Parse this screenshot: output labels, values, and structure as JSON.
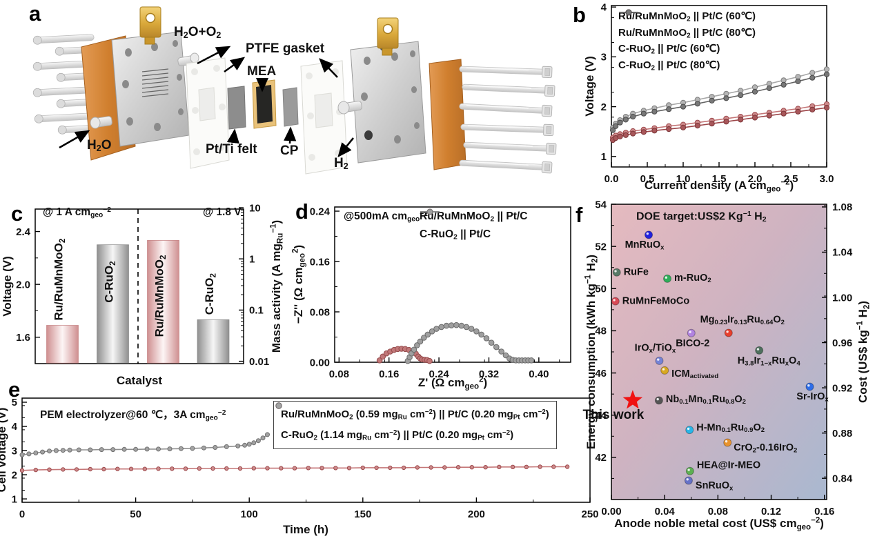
{
  "figure": {
    "letters": {
      "a": "a",
      "b": "b",
      "c": "c",
      "d": "d",
      "e": "e",
      "f": "f"
    }
  },
  "panel_a": {
    "labels": {
      "h2o_o2": "H<sub>2</sub>O+O<sub>2</sub>",
      "ptfe": "PTFE gasket",
      "mea": "MEA",
      "h2o": "H<sub>2</sub>O",
      "ptti": "Pt/Ti felt",
      "cp": "CP",
      "h2": "H<sub>2</sub>"
    }
  },
  "chart_data": [
    {
      "id": "b",
      "type": "line",
      "xlabel": "Current density (A cm<sub>geo</sub><sup>−2</sup>)",
      "ylabel": "Voltage (V)",
      "xlim": [
        0,
        3.0
      ],
      "ylim": [
        0.79,
        4.03
      ],
      "xticks": [
        0,
        0.5,
        1.0,
        1.5,
        2.0,
        2.5,
        3.0
      ],
      "xtick_labels": [
        "0.0",
        "0.5",
        "1.0",
        "1.5",
        "2.0",
        "2.5",
        "3.0"
      ],
      "yticks": [
        1,
        2,
        3,
        4
      ],
      "ytick_labels": [
        "1",
        "2",
        "3",
        "4"
      ],
      "x_minor": 0.25,
      "y_minor": 0.5,
      "series": [
        {
          "name": "Ru/RuMnMoO<sub>2</sub> || Pt/C (60℃)",
          "line": "#c47677",
          "marker_fill": "#cd8a8b",
          "marker_stroke": "#9d494c",
          "marker_size": 3.6,
          "x": [
            0.02,
            0.06,
            0.12,
            0.2,
            0.3,
            0.45,
            0.6,
            0.8,
            1.0,
            1.2,
            1.4,
            1.6,
            1.8,
            2.0,
            2.2,
            2.4,
            2.6,
            2.8,
            3.0
          ],
          "y": [
            1.38,
            1.42,
            1.45,
            1.48,
            1.51,
            1.54,
            1.57,
            1.61,
            1.64,
            1.68,
            1.72,
            1.76,
            1.8,
            1.84,
            1.88,
            1.92,
            1.96,
            2.01,
            2.05
          ]
        },
        {
          "name": "Ru/RuMnMoO<sub>2</sub> || Pt/C (80℃)",
          "line": "#9d4649",
          "marker_fill": "#a8575a",
          "marker_stroke": "#7c3437",
          "marker_size": 3.6,
          "x": [
            0.02,
            0.06,
            0.12,
            0.2,
            0.3,
            0.45,
            0.6,
            0.8,
            1.0,
            1.2,
            1.4,
            1.6,
            1.8,
            2.0,
            2.2,
            2.4,
            2.6,
            2.8,
            3.0
          ],
          "y": [
            1.33,
            1.37,
            1.4,
            1.43,
            1.46,
            1.49,
            1.52,
            1.55,
            1.58,
            1.62,
            1.66,
            1.7,
            1.74,
            1.78,
            1.82,
            1.86,
            1.9,
            1.94,
            1.98
          ]
        },
        {
          "name": "C-RuO<sub>2</sub> || Pt/C (60℃)",
          "line": "#a8a8a8",
          "marker_fill": "#b5b5b5",
          "marker_stroke": "#7e7e7e",
          "marker_size": 3.6,
          "x": [
            0.02,
            0.06,
            0.12,
            0.2,
            0.3,
            0.45,
            0.6,
            0.8,
            1.0,
            1.2,
            1.4,
            1.6,
            1.8,
            2.0,
            2.2,
            2.4,
            2.6,
            2.8,
            3.0
          ],
          "y": [
            1.58,
            1.66,
            1.73,
            1.8,
            1.86,
            1.92,
            1.97,
            2.03,
            2.08,
            2.14,
            2.2,
            2.26,
            2.32,
            2.39,
            2.46,
            2.53,
            2.6,
            2.68,
            2.75
          ]
        },
        {
          "name": "C-RuO<sub>2</sub> || Pt/C (80℃)",
          "line": "#646464",
          "marker_fill": "#787878",
          "marker_stroke": "#4a4a4a",
          "marker_size": 3.6,
          "x": [
            0.02,
            0.06,
            0.12,
            0.2,
            0.3,
            0.45,
            0.6,
            0.8,
            1.0,
            1.2,
            1.4,
            1.6,
            1.8,
            2.0,
            2.2,
            2.4,
            2.6,
            2.8,
            3.0
          ],
          "y": [
            1.53,
            1.61,
            1.68,
            1.74,
            1.8,
            1.86,
            1.9,
            1.95,
            2.0,
            2.06,
            2.12,
            2.17,
            2.23,
            2.3,
            2.37,
            2.44,
            2.51,
            2.58,
            2.65
          ]
        }
      ]
    },
    {
      "id": "c",
      "type": "bar-dual",
      "xlabel": "Catalyst",
      "left_axis": {
        "label": "Voltage (V)",
        "lim": [
          1.4,
          2.57
        ],
        "ticks": [
          1.6,
          2.0,
          2.4
        ],
        "tick_labels": [
          "1.6",
          "2.0",
          "2.4"
        ],
        "minor": 0.2
      },
      "right_axis": {
        "label": "Mass activity (A mg<sub>Ru</sub><sup>−1</sup>)",
        "scale": "log",
        "lim": [
          0.009,
          9.4
        ],
        "ticks": [
          0.01,
          0.1,
          1,
          10
        ],
        "tick_labels": [
          "0.01",
          "0.1",
          "1",
          "10"
        ]
      },
      "annotations": [
        {
          "text": "@ 1 A cm<sub>geo</sub><sup>−2</sup>"
        },
        {
          "text": "@ 1.8 V"
        }
      ],
      "bars": [
        {
          "label": "Ru/RuMnMoO<sub>2</sub>",
          "axis": "left",
          "value": 1.69,
          "fill": "pink",
          "label_anchor": "above"
        },
        {
          "label": "C-RuO<sub>2</sub>",
          "axis": "left",
          "value": 2.3,
          "fill": "gray",
          "label_anchor": "inside",
          "label_inset": 84
        },
        {
          "label": "Ru/RuMnMoO<sub>2</sub>",
          "axis": "right",
          "value": 2.3,
          "fill": "pink",
          "label_anchor": "inside",
          "label_inset": 140
        },
        {
          "label": "C-RuO<sub>2</sub>",
          "axis": "right",
          "value": 0.065,
          "fill": "gray",
          "label_anchor": "above"
        }
      ]
    },
    {
      "id": "d",
      "type": "line",
      "xlabel": "Z' (Ω cm<sub>geo</sub><sup>2</sup>)",
      "ylabel": "−Z'' (Ω cm<sub>geo</sub><sup>2</sup>)",
      "xlim": [
        0.073,
        0.451
      ],
      "ylim": [
        0,
        0.2466
      ],
      "xticks": [
        0.08,
        0.16,
        0.24,
        0.32,
        0.4
      ],
      "xtick_labels": [
        "0.08",
        "0.16",
        "0.24",
        "0.32",
        "0.40"
      ],
      "yticks": [
        0,
        0.08,
        0.16,
        0.24
      ],
      "ytick_labels": [
        "0.00",
        "0.08",
        "0.16",
        "0.24"
      ],
      "x_minor": 0.04,
      "y_minor": 0.04,
      "annotations": [
        {
          "text": "@500mA cm<sub>geo</sub><sup>−2</sup>"
        }
      ],
      "series": [
        {
          "name": "Ru/RuMnMoO<sub>2</sub> || Pt/C",
          "line": "#b25a5b",
          "marker_fill": "#c17778",
          "marker_stroke": "#944a4b",
          "marker_size": 3.8,
          "x": [
            0.145,
            0.15,
            0.156,
            0.162,
            0.168,
            0.174,
            0.18,
            0.186,
            0.192,
            0.198,
            0.203,
            0.207,
            0.21,
            0.213,
            0.217,
            0.221,
            0.225
          ],
          "y": [
            0.003,
            0.009,
            0.014,
            0.017,
            0.0195,
            0.021,
            0.0215,
            0.021,
            0.0195,
            0.017,
            0.0135,
            0.009,
            0.006,
            0.0045,
            0.004,
            0.0035,
            0.002
          ]
        },
        {
          "name": "C-RuO<sub>2</sub> || Pt/C",
          "line": "#8b8b8b",
          "marker_fill": "#9f9f9f",
          "marker_stroke": "#6b6b6b",
          "marker_size": 3.8,
          "x": [
            0.19,
            0.193,
            0.196,
            0.2,
            0.205,
            0.21,
            0.216,
            0.222,
            0.229,
            0.236,
            0.244,
            0.252,
            0.26,
            0.268,
            0.276,
            0.284,
            0.292,
            0.3,
            0.308,
            0.316,
            0.324,
            0.332,
            0.34,
            0.347,
            0.353,
            0.358,
            0.363,
            0.368,
            0.373,
            0.378,
            0.383,
            0.388
          ],
          "y": [
            0.002,
            0.008,
            0.014,
            0.02,
            0.027,
            0.033,
            0.039,
            0.044,
            0.049,
            0.053,
            0.056,
            0.058,
            0.0585,
            0.059,
            0.058,
            0.056,
            0.053,
            0.049,
            0.044,
            0.038,
            0.031,
            0.024,
            0.017,
            0.011,
            0.006,
            0.004,
            0.003,
            0.003,
            0.003,
            0.003,
            0.003,
            0.003
          ]
        }
      ]
    },
    {
      "id": "e",
      "type": "line",
      "xlabel": "Time (h)",
      "ylabel": "Cell voltage (V)",
      "xlim": [
        0,
        250
      ],
      "ylim": [
        0.86,
        5.17
      ],
      "xticks": [
        0,
        50,
        100,
        150,
        200,
        250
      ],
      "xtick_labels": [
        "0",
        "50",
        "100",
        "150",
        "200",
        "250"
      ],
      "yticks": [
        1,
        2,
        3,
        4,
        5
      ],
      "ytick_labels": [
        "1",
        "2",
        "3",
        "4",
        "5"
      ],
      "x_minor": 25,
      "y_minor": 0.5,
      "annotations": [
        {
          "text": "PEM electrolyzer@60 ℃，3A cm<sub>geo</sub><sup>−2</sup>"
        }
      ],
      "series": [
        {
          "name": "Ru/RuMnMoO<sub>2</sub> (0.59 mg<sub>Ru</sub> cm<sup>−2</sup>) || Pt/C (0.20 mg<sub>Pt</sub> cm<sup>−2</sup>)",
          "line": "#c47677",
          "marker_fill": "#cd8a8b",
          "marker_stroke": "#9d494c",
          "marker_size": 2.7,
          "x": [
            0,
            6,
            12,
            18,
            24,
            30,
            36,
            42,
            48,
            54,
            60,
            66,
            72,
            78,
            84,
            90,
            96,
            102,
            108,
            114,
            120,
            126,
            132,
            138,
            144,
            150,
            156,
            162,
            168,
            174,
            180,
            186,
            192,
            198,
            204,
            210,
            216,
            222,
            228,
            234,
            240
          ],
          "y": [
            2.18,
            2.2,
            2.21,
            2.22,
            2.22,
            2.23,
            2.23,
            2.24,
            2.24,
            2.24,
            2.25,
            2.25,
            2.25,
            2.26,
            2.26,
            2.26,
            2.26,
            2.27,
            2.27,
            2.27,
            2.27,
            2.28,
            2.28,
            2.28,
            2.28,
            2.29,
            2.29,
            2.29,
            2.29,
            2.3,
            2.3,
            2.3,
            2.31,
            2.31,
            2.31,
            2.32,
            2.32,
            2.32,
            2.33,
            2.33,
            2.33
          ]
        },
        {
          "name": "C-RuO<sub>2</sub> (1.14 mg<sub>Ru</sub> cm<sup>−2</sup>)  || Pt/C (0.20 mg<sub>Pt</sub> cm<sup>−2</sup>)",
          "line": "#8f8f8f",
          "marker_fill": "#a3a3a3",
          "marker_stroke": "#6f6f6f",
          "marker_size": 3.0,
          "x": [
            0,
            3,
            6,
            9,
            12,
            15,
            18,
            21,
            25,
            30,
            35,
            40,
            45,
            50,
            55,
            60,
            65,
            70,
            75,
            80,
            85,
            90,
            95,
            98,
            100,
            102,
            104,
            106,
            108
          ],
          "y": [
            2.82,
            2.86,
            2.9,
            2.94,
            2.98,
            3.0,
            3.01,
            3.02,
            3.03,
            3.03,
            3.04,
            3.04,
            3.05,
            3.05,
            3.06,
            3.06,
            3.07,
            3.08,
            3.09,
            3.11,
            3.13,
            3.16,
            3.19,
            3.22,
            3.26,
            3.32,
            3.41,
            3.52,
            3.66
          ]
        }
      ]
    },
    {
      "id": "f",
      "type": "scatter",
      "xlabel": "Anode noble metal cost (US$ cm<sub>geo</sub><sup>−2</sup>)",
      "ylabel": "Energy consumption (kWh kg<sup>−1</sup> H<sub>2</sub>)",
      "xlim": [
        0,
        0.1617
      ],
      "ylim": [
        40,
        54
      ],
      "xticks": [
        0,
        0.04,
        0.08,
        0.12,
        0.16
      ],
      "xtick_labels": [
        "0.00",
        "0.04",
        "0.08",
        "0.12",
        "0.16"
      ],
      "yticks": [
        42,
        44,
        46,
        48,
        50,
        52,
        54
      ],
      "ytick_labels": [
        "42",
        "44",
        "46",
        "48",
        "50",
        "52",
        "54"
      ],
      "x_minor": 0.02,
      "y_minor": 1,
      "right_axis": {
        "label": "Cost (US$ kg<sup>−1</sup> H<sub>2</sub>)",
        "lim": [
          0.8212,
          1.0824
        ],
        "ticks": [
          0.84,
          0.88,
          0.92,
          0.96,
          1.0,
          1.04,
          1.08
        ],
        "tick_labels": [
          "0.84",
          "0.88",
          "0.92",
          "0.96",
          "1.00",
          "1.04",
          "1.08"
        ],
        "minor": 0.02
      },
      "annotation": {
        "text": "DOE target:US$2 Kg<sup>−1</sup> H<sub>2</sub>"
      },
      "background_gradient": [
        "#e5babf",
        "#cfb3c1",
        "#a9b8d0"
      ],
      "points": [
        {
          "label": "MnRuO<sub>x</sub>",
          "x": 0.028,
          "y": 52.55,
          "color": "#2222dd",
          "marker": "circle",
          "label_pos": "below",
          "label_dx": -6
        },
        {
          "label": "RuFe",
          "x": 0.004,
          "y": 50.77,
          "color": "#5a7a68",
          "marker": "circle",
          "label_pos": "right"
        },
        {
          "label": "m-RuO<sub>2</sub>",
          "x": 0.042,
          "y": 50.47,
          "color": "#2fae5a",
          "marker": "circle",
          "label_pos": "right"
        },
        {
          "label": "RuMnFeMoCo",
          "x": 0.003,
          "y": 49.4,
          "color": "#d84a56",
          "marker": "circle",
          "label_pos": "right"
        },
        {
          "label": "Mg<sub>0.23</sub>Ir<sub>0.13</sub>Ru<sub>0.64</sub>O<sub>2</sub>",
          "x": 0.088,
          "y": 47.9,
          "color": "#e8402e",
          "marker": "circle",
          "label_pos": "above",
          "label_dx": 20
        },
        {
          "label": "BICO-2",
          "x": 0.06,
          "y": 47.89,
          "color": "#b183e0",
          "marker": "circle",
          "label_pos": "below",
          "label_dx": 2
        },
        {
          "label": "IrO<sub>x</sub>/TiO<sub>x</sub>",
          "x": 0.036,
          "y": 46.58,
          "color": "#7583d6",
          "marker": "circle",
          "label_pos": "above",
          "label_dx": -6
        },
        {
          "label": "ICM<sub>activated</sub>",
          "x": 0.04,
          "y": 46.12,
          "color": "#d8a822",
          "marker": "circle",
          "label_pos": "right",
          "label_dy": 6
        },
        {
          "label": "H<sub>3.8</sub>Ir<sub>1−x</sub>Ru<sub>x</sub>O<sub>4</sub>",
          "x": 0.111,
          "y": 47.07,
          "color": "#4e6f5d",
          "marker": "circle",
          "label_pos": "below",
          "label_dx": 14
        },
        {
          "label": "This work",
          "x": 0.016,
          "y": 44.7,
          "color": "#f01212",
          "marker": "star",
          "label_pos": "below",
          "label_dx": -28,
          "label_dy": 4,
          "emphasis": true
        },
        {
          "label": "Nb<sub>0.1</sub>Mn<sub>0.1</sub>Ru<sub>0.8</sub>O<sub>2</sub>",
          "x": 0.0357,
          "y": 44.7,
          "color": "#555555",
          "marker": "circle",
          "label_pos": "right"
        },
        {
          "label": "Sr-IrO<sub>x</sub>",
          "x": 0.149,
          "y": 45.35,
          "color": "#2e6de8",
          "marker": "circle",
          "label_pos": "below",
          "label_dx": 4
        },
        {
          "label": "H-Mn<sub>0.1</sub>Ru<sub>0.9</sub>O<sub>2</sub>",
          "x": 0.0587,
          "y": 43.3,
          "color": "#28b6e8",
          "marker": "circle",
          "label_pos": "right",
          "label_dy": -2
        },
        {
          "label": "CrO<sub>2</sub>-0.16IrO<sub>2</sub>",
          "x": 0.0872,
          "y": 42.7,
          "color": "#e8932e",
          "marker": "circle",
          "label_pos": "below-right",
          "label_dy": -2
        },
        {
          "label": "HEA@Ir-MEO",
          "x": 0.059,
          "y": 41.35,
          "color": "#5cb052",
          "marker": "circle",
          "label_pos": "right",
          "label_dy": -8
        },
        {
          "label": "SnRuO<sub>x</sub>",
          "x": 0.058,
          "y": 40.9,
          "color": "#6672c8",
          "marker": "circle",
          "label_pos": "below-right",
          "label_dx": 1,
          "label_dy": -2
        }
      ]
    }
  ]
}
